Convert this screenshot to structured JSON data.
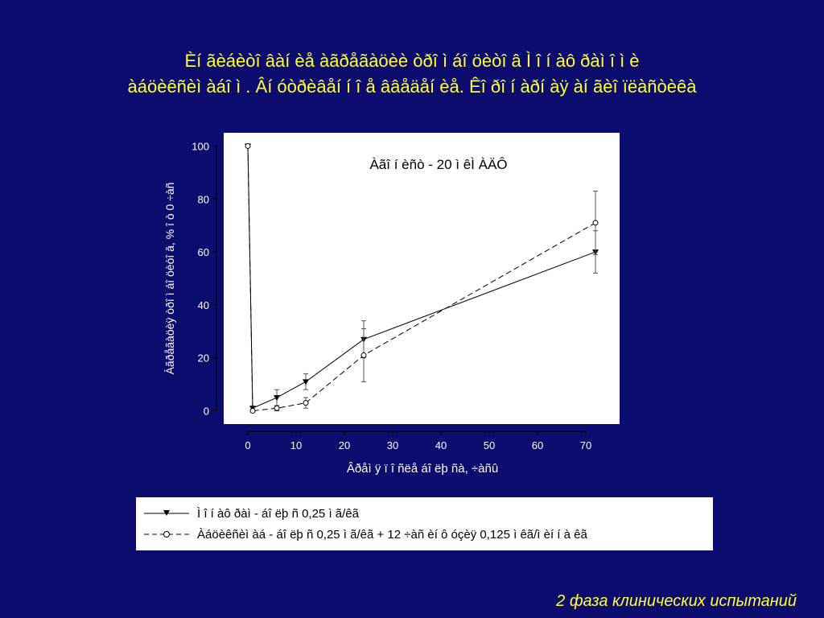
{
  "slide": {
    "title_lines": [
      "Èí ãèáèòî âàí èå àãðåãàöèè òðî ì áî öèòî â Ì î í àô ðàì î ì è",
      "àáöèêñèì àáî ì . Âí óòðèâåí í î å ââåäåí èå. Êî ðî í àðí àÿ àí ãèî ïëàñòèêà"
    ],
    "footer": "2 фаза клинических испытаний"
  },
  "chart_data": {
    "type": "line",
    "title": "Àãî í èñò - 20 ì êÌ ÀÄÔ",
    "xlabel": "Âðåì ÿ ï î ñëå áî ëþ ñà, ÷àñû",
    "ylabel": "Àãðåãàöèÿ òðî ì áî öèòî â, % î ò 0 ÷àñ",
    "xlim": [
      -5,
      77
    ],
    "ylim": [
      -5,
      105
    ],
    "x_ticks": [
      0,
      10,
      20,
      30,
      40,
      50,
      60,
      70
    ],
    "y_ticks": [
      0,
      20,
      40,
      60,
      80,
      100
    ],
    "grid": false,
    "legend_position": "below",
    "series": [
      {
        "name": "Ì î í àô ðàì  - áî ëþ ñ 0,25 ì ã/êã",
        "marker": "triangle-down-filled",
        "line_style": "solid",
        "x": [
          0,
          1,
          6,
          12,
          24,
          72
        ],
        "y": [
          100,
          1,
          5,
          11,
          27,
          60
        ],
        "error": [
          0,
          0,
          3,
          3,
          7,
          8
        ]
      },
      {
        "name": "Àáöèêñèì àá - áî ëþ ñ 0,25 ì ã/êã + 12 ÷àñ èí ô óçèÿ  0,125 ì êã/ì èí  í à êã",
        "marker": "circle-open",
        "line_style": "dashed",
        "x": [
          0,
          1,
          6,
          12,
          24,
          72
        ],
        "y": [
          100,
          0,
          1,
          3,
          21,
          71
        ],
        "error": [
          0,
          0,
          1,
          2,
          10,
          12
        ]
      }
    ]
  }
}
